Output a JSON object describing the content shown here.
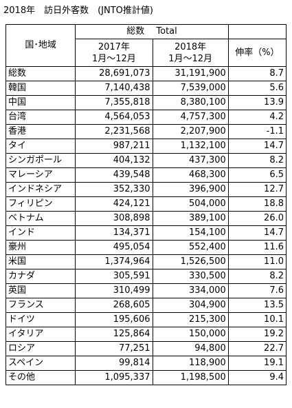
{
  "title": "2018年　訪日外客数　(JNTO推計値)",
  "header": {
    "country_label": "国･地域",
    "total_label": "総数　 Total",
    "col_2017_line1": "2017年",
    "col_2017_line2": "1月～12月",
    "col_2018_line1": "2018年",
    "col_2018_line2": "1月～12月",
    "rate_label": "伸率（%）"
  },
  "rows": [
    {
      "name": "総数",
      "v2017": "28,691,073",
      "v2018": "31,191,900",
      "rate": "8.7"
    },
    {
      "name": "韓国",
      "v2017": "7,140,438",
      "v2018": "7,539,000",
      "rate": "5.6"
    },
    {
      "name": "中国",
      "v2017": "7,355,818",
      "v2018": "8,380,100",
      "rate": "13.9"
    },
    {
      "name": "台湾",
      "v2017": "4,564,053",
      "v2018": "4,757,300",
      "rate": "4.2"
    },
    {
      "name": "香港",
      "v2017": "2,231,568",
      "v2018": "2,207,900",
      "rate": "-1.1"
    },
    {
      "name": "タイ",
      "v2017": "987,211",
      "v2018": "1,132,100",
      "rate": "14.7"
    },
    {
      "name": "シンガポール",
      "v2017": "404,132",
      "v2018": "437,300",
      "rate": "8.2"
    },
    {
      "name": "マレーシア",
      "v2017": "439,548",
      "v2018": "468,300",
      "rate": "6.5"
    },
    {
      "name": "インドネシア",
      "v2017": "352,330",
      "v2018": "396,900",
      "rate": "12.7"
    },
    {
      "name": "フィリピン",
      "v2017": "424,121",
      "v2018": "504,000",
      "rate": "18.8"
    },
    {
      "name": "ベトナム",
      "v2017": "308,898",
      "v2018": "389,100",
      "rate": "26.0"
    },
    {
      "name": "インド",
      "v2017": "134,371",
      "v2018": "154,100",
      "rate": "14.7"
    },
    {
      "name": "豪州",
      "v2017": "495,054",
      "v2018": "552,400",
      "rate": "11.6"
    },
    {
      "name": "米国",
      "v2017": "1,374,964",
      "v2018": "1,526,500",
      "rate": "11.0"
    },
    {
      "name": "カナダ",
      "v2017": "305,591",
      "v2018": "330,500",
      "rate": "8.2"
    },
    {
      "name": "英国",
      "v2017": "310,499",
      "v2018": "334,000",
      "rate": "7.6"
    },
    {
      "name": "フランス",
      "v2017": "268,605",
      "v2018": "304,900",
      "rate": "13.5"
    },
    {
      "name": "ドイツ",
      "v2017": "195,606",
      "v2018": "215,300",
      "rate": "10.1"
    },
    {
      "name": "イタリア",
      "v2017": "125,864",
      "v2018": "150,000",
      "rate": "19.2"
    },
    {
      "name": "ロシア",
      "v2017": "77,251",
      "v2018": "94,800",
      "rate": "22.7"
    },
    {
      "name": "スペイン",
      "v2017": "99,814",
      "v2018": "118,900",
      "rate": "19.1"
    },
    {
      "name": "その他",
      "v2017": "1,095,337",
      "v2018": "1,198,500",
      "rate": "9.4"
    }
  ]
}
